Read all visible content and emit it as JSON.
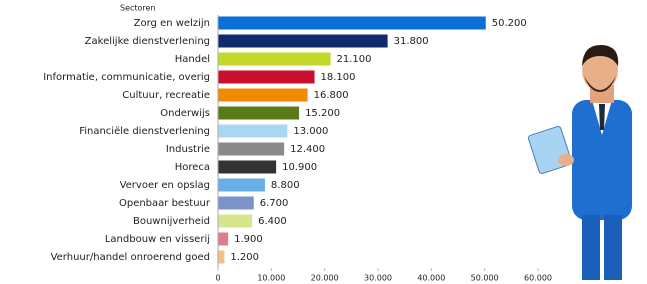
{
  "chart_data": {
    "type": "bar",
    "orientation": "horizontal",
    "y_axis_label": "Sectoren",
    "categories": [
      "Zorg en welzijn",
      "Zakelijke dienstverlening",
      "Handel",
      "Informatie, communicatie, overig",
      "Cultuur, recreatie",
      "Onderwijs",
      "Financiële dienstverlening",
      "Industrie",
      "Horeca",
      "Vervoer en opslag",
      "Openbaar bestuur",
      "Bouwnijverheid",
      "Landbouw en visserij",
      "Verhuur/handel onroerend goed"
    ],
    "values": [
      50200,
      31800,
      21100,
      18100,
      16800,
      15200,
      13000,
      12400,
      10900,
      8800,
      6700,
      6400,
      1900,
      1200
    ],
    "value_labels": [
      "50.200",
      "31.800",
      "21.100",
      "18.100",
      "16.800",
      "15.200",
      "13.000",
      "12.400",
      "10.900",
      "8.800",
      "6.700",
      "6.400",
      "1.900",
      "1.200"
    ],
    "colors": [
      "#0a70d6",
      "#0f2b6b",
      "#c3d82b",
      "#c8102e",
      "#f08a00",
      "#5b7a18",
      "#a9d6f3",
      "#8a8a8a",
      "#333333",
      "#6aaee6",
      "#7b93c9",
      "#d8e58c",
      "#e07b8c",
      "#f2c184"
    ],
    "xlim": [
      0,
      60000
    ],
    "xticks": [
      0,
      {
        "value": 10000,
        "label": "10.000"
      },
      {
        "value": 20000,
        "label": "20.000"
      },
      {
        "value": 30000,
        "label": "30.000"
      },
      {
        "value": 40000,
        "label": "40.000"
      },
      {
        "value": 50000,
        "label": "50.000"
      },
      {
        "value": 60000,
        "label": "60.000"
      }
    ],
    "grid": false
  }
}
